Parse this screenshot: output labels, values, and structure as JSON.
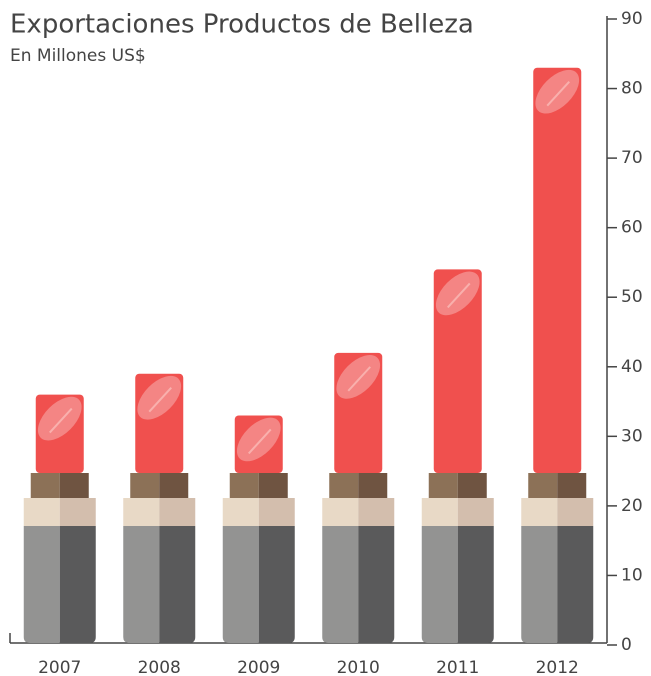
{
  "chart_data": {
    "type": "bar",
    "title": "Exportaciones Productos de Belleza",
    "subtitle": "En Millones US$",
    "categories": [
      "2007",
      "2008",
      "2009",
      "2010",
      "2011",
      "2012"
    ],
    "values": [
      36,
      39,
      33,
      42,
      54,
      83
    ],
    "color": "#f0504e",
    "ylim": [
      0,
      90
    ],
    "yticks": [
      0,
      10,
      20,
      30,
      40,
      50,
      60,
      70,
      80,
      90
    ],
    "axis_side": "right"
  }
}
